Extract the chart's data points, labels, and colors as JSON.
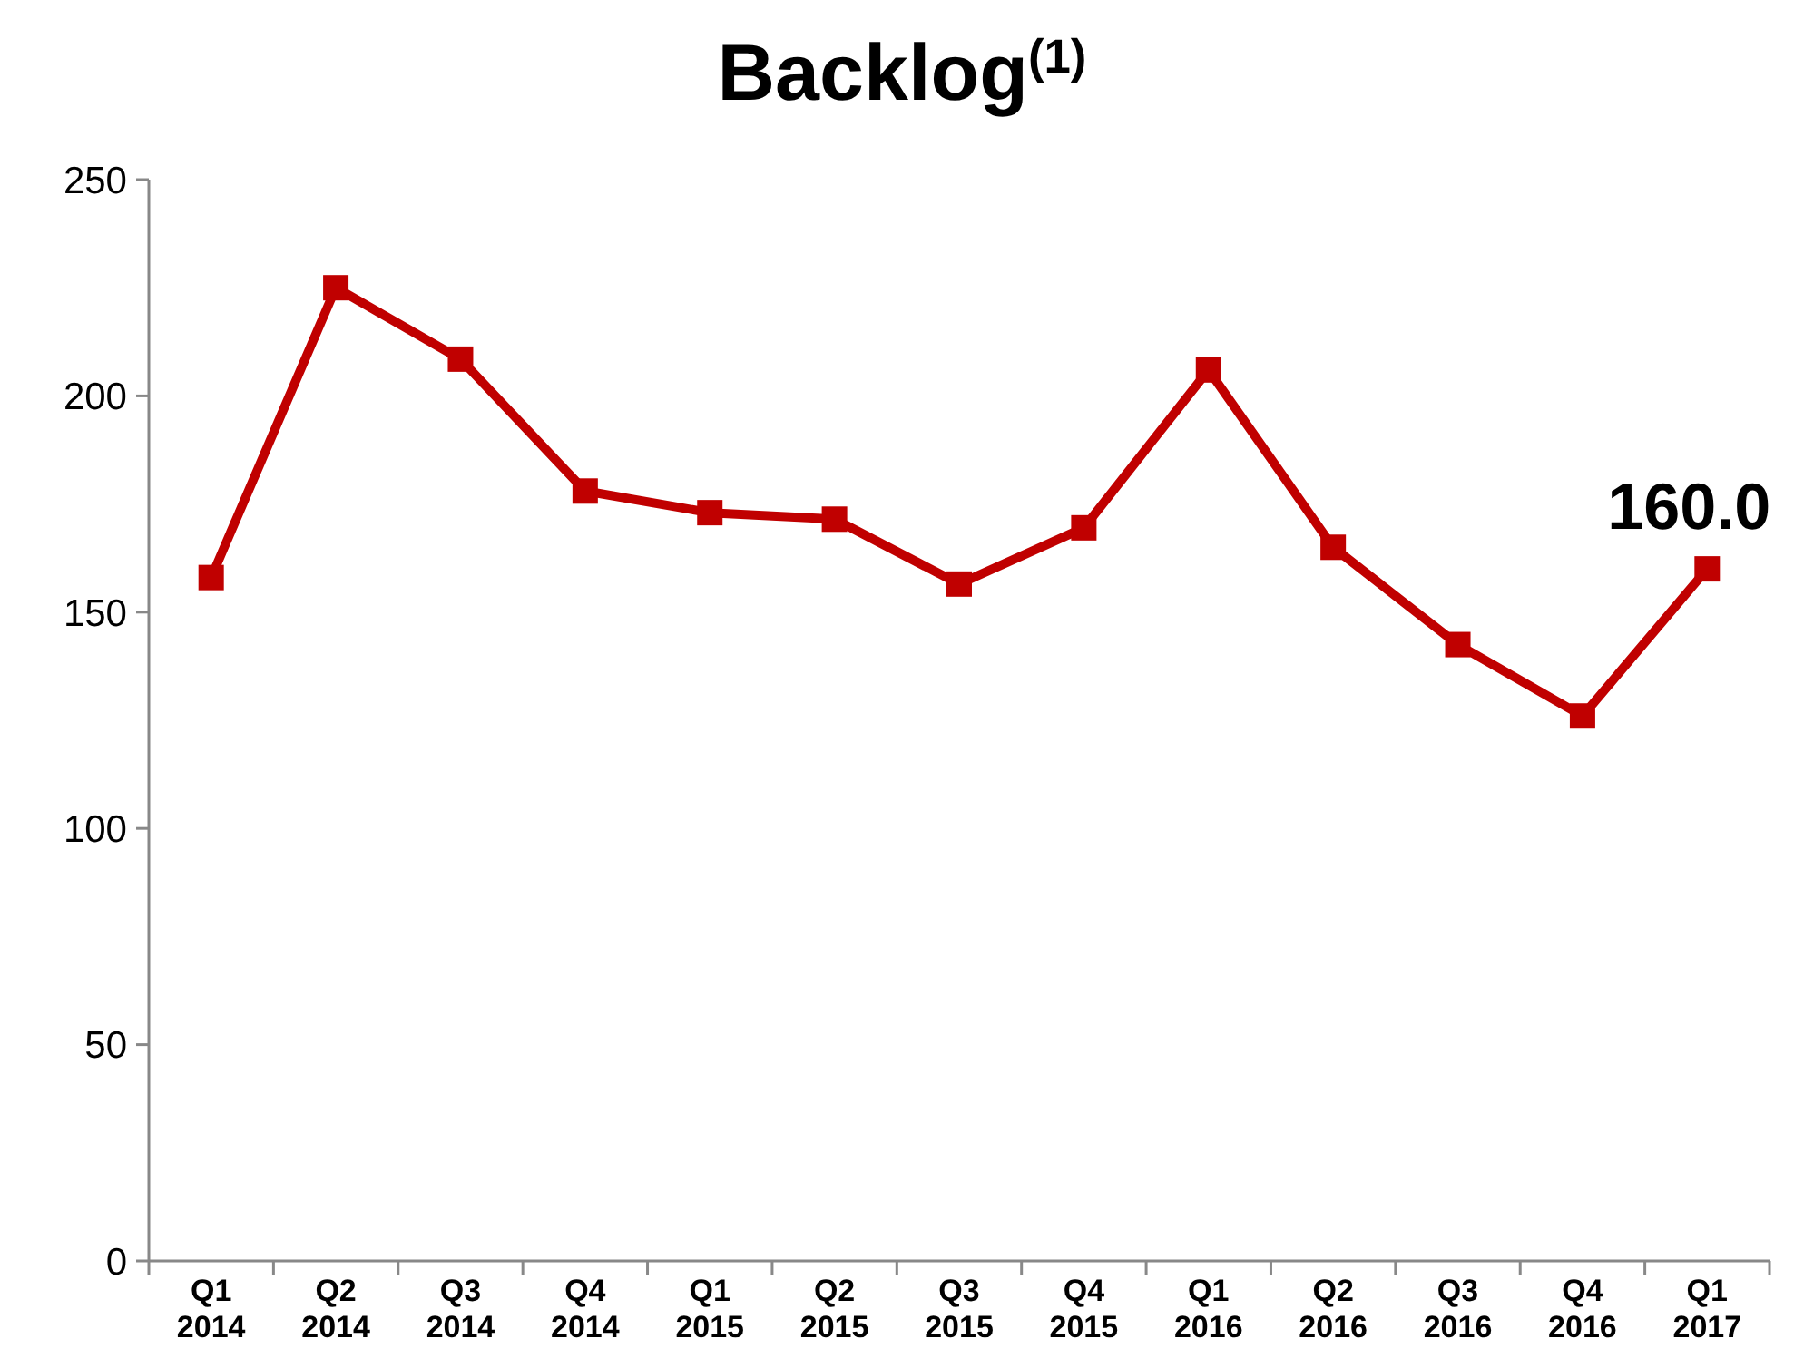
{
  "chart_data": {
    "type": "line",
    "title": "Backlog$^{(1)}$",
    "categories": [
      "Q1\n2014",
      "Q2\n2014",
      "Q3\n2014",
      "Q4\n2014",
      "Q1\n2015",
      "Q2\n2015",
      "Q3\n2015",
      "Q4\n2015",
      "Q1\n2016",
      "Q2\n2016",
      "Q3\n2016",
      "Q4\n2016",
      "Q1\n2017"
    ],
    "series": [
      {
        "color": "#c00000",
        "values": [
          158,
          225,
          208.5,
          178,
          173,
          171.5,
          156.5,
          169.5,
          206,
          165,
          142.5,
          126,
          160.0
        ],
        "value_labels": [
          null,
          null,
          null,
          null,
          null,
          null,
          null,
          null,
          null,
          null,
          null,
          null,
          "160.0"
        ]
      }
    ],
    "ylim": [
      0,
      250
    ],
    "yticks": [
      0,
      50,
      100,
      150,
      200,
      250
    ],
    "grid": false,
    "marker": "square",
    "line_style": "solid"
  }
}
